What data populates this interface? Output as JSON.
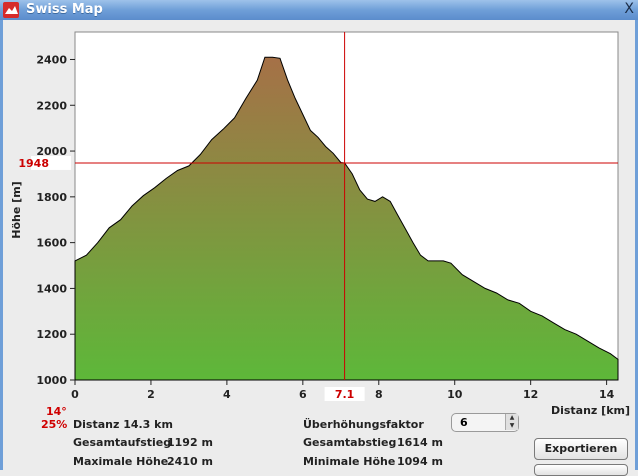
{
  "window": {
    "title": "Swiss Map",
    "close_label": "X"
  },
  "chart_data": {
    "type": "area",
    "xlabel": "Distanz [km]",
    "ylabel": "Höhe [m]",
    "xlim": [
      0,
      14.3
    ],
    "ylim": [
      1000,
      2520
    ],
    "x_ticks": [
      0,
      2,
      4,
      6,
      8,
      10,
      12,
      14
    ],
    "y_ticks": [
      1000,
      1200,
      1400,
      1600,
      1800,
      2000,
      2200,
      2400
    ],
    "x": [
      0,
      0.3,
      0.6,
      0.9,
      1.2,
      1.5,
      1.8,
      2.1,
      2.4,
      2.7,
      3.0,
      3.3,
      3.6,
      3.9,
      4.2,
      4.5,
      4.8,
      5.0,
      5.2,
      5.4,
      5.6,
      5.8,
      6.0,
      6.2,
      6.4,
      6.6,
      6.8,
      7.0,
      7.1,
      7.3,
      7.5,
      7.7,
      7.9,
      8.1,
      8.3,
      8.5,
      8.7,
      8.9,
      9.1,
      9.3,
      9.5,
      9.7,
      9.9,
      10.2,
      10.5,
      10.8,
      11.1,
      11.4,
      11.7,
      12.0,
      12.3,
      12.6,
      12.9,
      13.2,
      13.5,
      13.8,
      14.1,
      14.3
    ],
    "y": [
      1520,
      1545,
      1600,
      1665,
      1700,
      1760,
      1805,
      1840,
      1880,
      1915,
      1935,
      1985,
      2050,
      2095,
      2145,
      2230,
      2310,
      2410,
      2410,
      2405,
      2310,
      2230,
      2160,
      2090,
      2060,
      2020,
      1990,
      1950,
      1948,
      1900,
      1830,
      1790,
      1780,
      1800,
      1780,
      1720,
      1660,
      1600,
      1545,
      1520,
      1520,
      1520,
      1510,
      1460,
      1430,
      1400,
      1380,
      1350,
      1335,
      1300,
      1280,
      1250,
      1220,
      1200,
      1170,
      1140,
      1115,
      1090
    ],
    "cursor": {
      "x": 7.1,
      "y": 1948,
      "x_label": "7.1",
      "y_label": "1948"
    }
  },
  "info": {
    "slope_angle": "14°",
    "slope_percent": "25%",
    "distance": "Distanz 14.3 km",
    "ascent_label": "Gesamtaufstieg",
    "ascent_value": "1192 m",
    "max_label": "Maximale Höhe",
    "max_value": "2410 m",
    "exag_label": "Überhöhungsfaktor",
    "exag_value": "6",
    "descent_label": "Gesamtabstieg",
    "descent_value": "1614 m",
    "min_label": "Minimale Höhe",
    "min_value": "1094 m"
  },
  "buttons": {
    "export": "Exportieren",
    "second": ""
  },
  "colors": {
    "high": "#a67047",
    "low": "#5db839",
    "cursor": "#cc0000"
  }
}
